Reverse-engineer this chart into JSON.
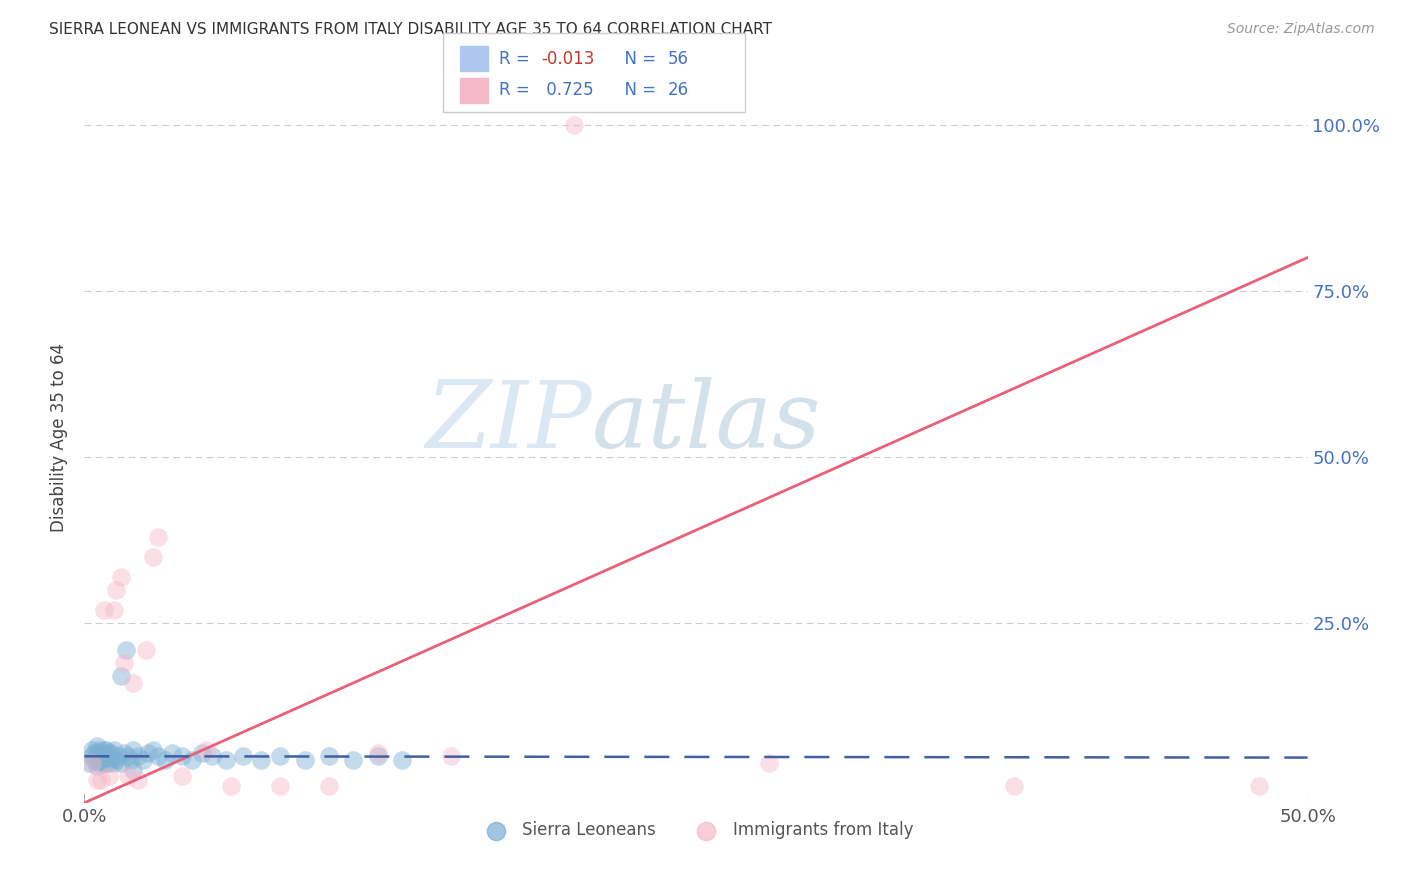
{
  "title": "SIERRA LEONEAN VS IMMIGRANTS FROM ITALY DISABILITY AGE 35 TO 64 CORRELATION CHART",
  "source": "Source: ZipAtlas.com",
  "ylabel": "Disability Age 35 to 64",
  "xlim": [
    0.0,
    0.5
  ],
  "ylim": [
    -0.02,
    1.08
  ],
  "xtick_labels": [
    "0.0%",
    "50.0%"
  ],
  "xtick_positions": [
    0.0,
    0.5
  ],
  "ytick_labels": [
    "25.0%",
    "50.0%",
    "75.0%",
    "100.0%"
  ],
  "ytick_positions": [
    0.25,
    0.5,
    0.75,
    1.0
  ],
  "blue_color": "#7bafd4",
  "pink_color": "#f5b8c8",
  "blue_line_color": "#4060a0",
  "pink_line_color": "#e8607a",
  "blue_r": -0.013,
  "pink_r": 0.725,
  "watermark_zip": "ZIP",
  "watermark_atlas": "atlas",
  "sierra_x": [
    0.002,
    0.003,
    0.003,
    0.004,
    0.004,
    0.005,
    0.005,
    0.005,
    0.005,
    0.006,
    0.006,
    0.006,
    0.007,
    0.007,
    0.008,
    0.008,
    0.008,
    0.009,
    0.009,
    0.009,
    0.01,
    0.01,
    0.011,
    0.011,
    0.012,
    0.012,
    0.013,
    0.014,
    0.015,
    0.016,
    0.017,
    0.018,
    0.019,
    0.02,
    0.022,
    0.024,
    0.026,
    0.028,
    0.03,
    0.033,
    0.036,
    0.04,
    0.044,
    0.048,
    0.052,
    0.058,
    0.065,
    0.072,
    0.08,
    0.09,
    0.1,
    0.11,
    0.12,
    0.13,
    0.015,
    0.02
  ],
  "sierra_y": [
    0.04,
    0.05,
    0.06,
    0.045,
    0.055,
    0.035,
    0.045,
    0.055,
    0.065,
    0.04,
    0.05,
    0.06,
    0.045,
    0.055,
    0.04,
    0.05,
    0.06,
    0.04,
    0.05,
    0.06,
    0.04,
    0.055,
    0.045,
    0.055,
    0.04,
    0.06,
    0.045,
    0.05,
    0.04,
    0.055,
    0.21,
    0.05,
    0.045,
    0.06,
    0.05,
    0.045,
    0.055,
    0.06,
    0.05,
    0.045,
    0.055,
    0.05,
    0.045,
    0.055,
    0.05,
    0.045,
    0.05,
    0.045,
    0.05,
    0.045,
    0.05,
    0.045,
    0.05,
    0.045,
    0.17,
    0.03
  ],
  "italy_x": [
    0.003,
    0.005,
    0.007,
    0.008,
    0.01,
    0.012,
    0.013,
    0.015,
    0.016,
    0.018,
    0.02,
    0.022,
    0.025,
    0.028,
    0.03,
    0.04,
    0.05,
    0.06,
    0.08,
    0.1,
    0.12,
    0.15,
    0.2,
    0.28,
    0.38,
    0.48
  ],
  "italy_y": [
    0.04,
    0.015,
    0.015,
    0.27,
    0.02,
    0.27,
    0.3,
    0.32,
    0.19,
    0.02,
    0.16,
    0.015,
    0.21,
    0.35,
    0.38,
    0.02,
    0.06,
    0.005,
    0.005,
    0.005,
    0.055,
    0.05,
    1.0,
    0.04,
    0.005,
    0.005
  ],
  "pink_line_x0": 0.0,
  "pink_line_y0": -0.02,
  "pink_line_x1": 0.5,
  "pink_line_y1": 0.8,
  "blue_line_x0": 0.0,
  "blue_line_y0": 0.05,
  "blue_line_x1": 0.5,
  "blue_line_y1": 0.048
}
